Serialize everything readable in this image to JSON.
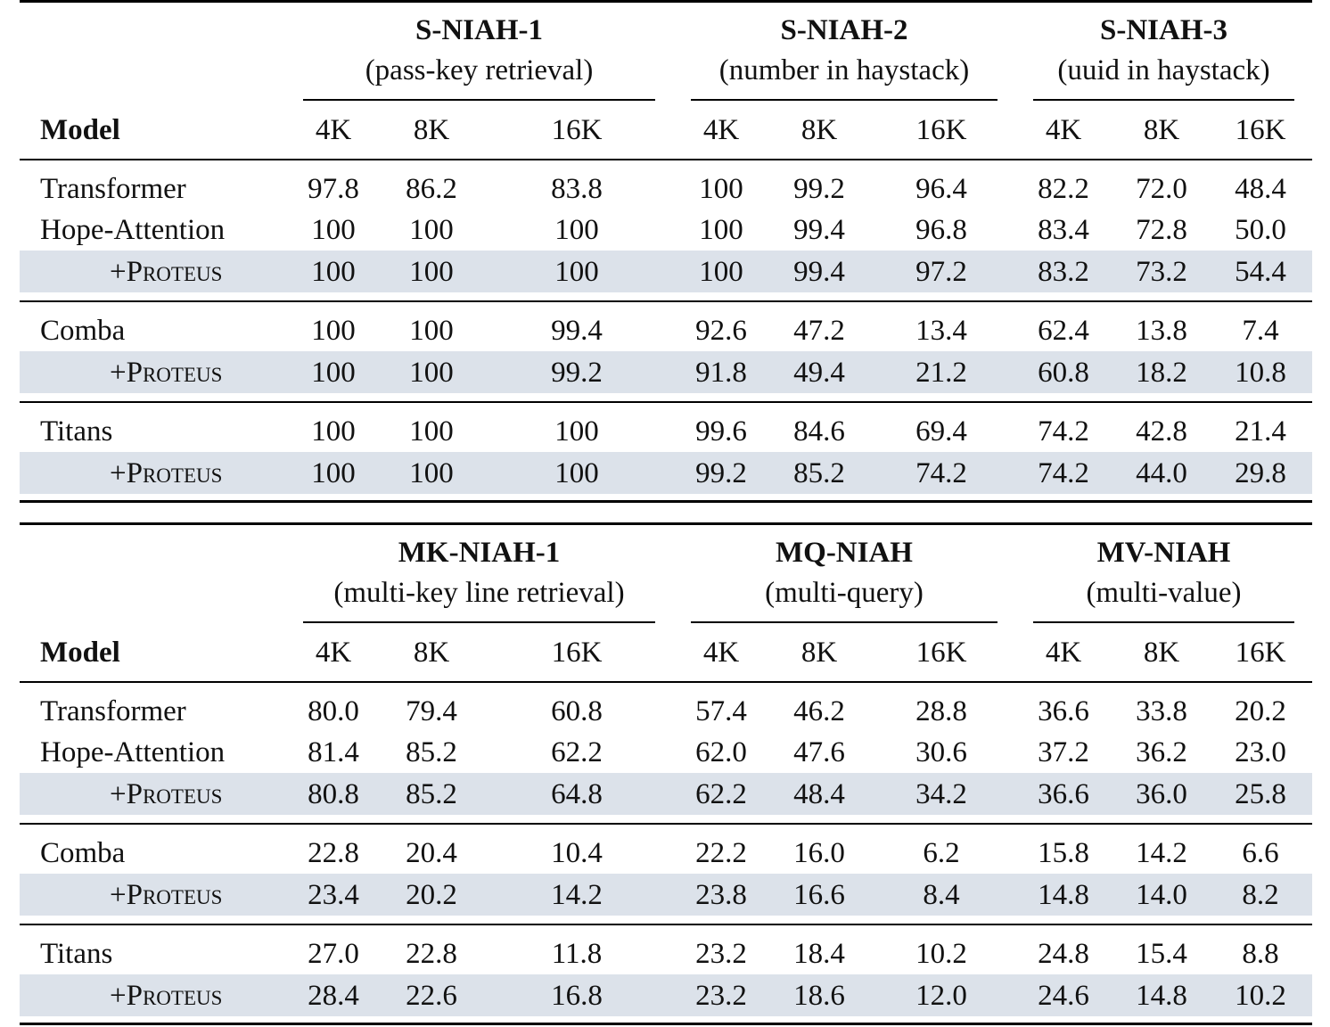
{
  "tables": [
    {
      "model_header": "Model",
      "groups": [
        {
          "title": "S-NIAH-1",
          "subtitle": "(pass-key retrieval)"
        },
        {
          "title": "S-NIAH-2",
          "subtitle": "(number in haystack)"
        },
        {
          "title": "S-NIAH-3",
          "subtitle": "(uuid in haystack)"
        }
      ],
      "context_lengths": [
        "4K",
        "8K",
        "16K",
        "4K",
        "8K",
        "16K",
        "4K",
        "8K",
        "16K"
      ],
      "rows": [
        {
          "model": "Transformer",
          "values": [
            "97.8",
            "86.2",
            "83.8",
            "100",
            "99.2",
            "96.4",
            "82.2",
            "72.0",
            "48.4"
          ]
        },
        {
          "model": "Hope-Attention",
          "values": [
            "100",
            "100",
            "100",
            "100",
            "99.4",
            "96.8",
            "83.4",
            "72.8",
            "50.0"
          ]
        },
        {
          "model": "+Proteus",
          "values": [
            "100",
            "100",
            "100",
            "100",
            "99.4",
            "97.2",
            "83.2",
            "73.2",
            "54.4"
          ]
        },
        {
          "model": "Comba",
          "values": [
            "100",
            "100",
            "99.4",
            "92.6",
            "47.2",
            "13.4",
            "62.4",
            "13.8",
            "7.4"
          ]
        },
        {
          "model": "+Proteus",
          "values": [
            "100",
            "100",
            "99.2",
            "91.8",
            "49.4",
            "21.2",
            "60.8",
            "18.2",
            "10.8"
          ]
        },
        {
          "model": "Titans",
          "values": [
            "100",
            "100",
            "100",
            "99.6",
            "84.6",
            "69.4",
            "74.2",
            "42.8",
            "21.4"
          ]
        },
        {
          "model": "+Proteus",
          "values": [
            "100",
            "100",
            "100",
            "99.2",
            "85.2",
            "74.2",
            "74.2",
            "44.0",
            "29.8"
          ]
        }
      ]
    },
    {
      "model_header": "Model",
      "groups": [
        {
          "title": "MK-NIAH-1",
          "subtitle": "(multi-key line retrieval)"
        },
        {
          "title": "MQ-NIAH",
          "subtitle": "(multi-query)"
        },
        {
          "title": "MV-NIAH",
          "subtitle": "(multi-value)"
        }
      ],
      "context_lengths": [
        "4K",
        "8K",
        "16K",
        "4K",
        "8K",
        "16K",
        "4K",
        "8K",
        "16K"
      ],
      "rows": [
        {
          "model": "Transformer",
          "values": [
            "80.0",
            "79.4",
            "60.8",
            "57.4",
            "46.2",
            "28.8",
            "36.6",
            "33.8",
            "20.2"
          ]
        },
        {
          "model": "Hope-Attention",
          "values": [
            "81.4",
            "85.2",
            "62.2",
            "62.0",
            "47.6",
            "30.6",
            "37.2",
            "36.2",
            "23.0"
          ]
        },
        {
          "model": "+Proteus",
          "values": [
            "80.8",
            "85.2",
            "64.8",
            "62.2",
            "48.4",
            "34.2",
            "36.6",
            "36.0",
            "25.8"
          ]
        },
        {
          "model": "Comba",
          "values": [
            "22.8",
            "20.4",
            "10.4",
            "22.2",
            "16.0",
            "6.2",
            "15.8",
            "14.2",
            "6.6"
          ]
        },
        {
          "model": "+Proteus",
          "values": [
            "23.4",
            "20.2",
            "14.2",
            "23.8",
            "16.6",
            "8.4",
            "14.8",
            "14.0",
            "8.2"
          ]
        },
        {
          "model": "Titans",
          "values": [
            "27.0",
            "22.8",
            "11.8",
            "23.2",
            "18.4",
            "10.2",
            "24.8",
            "15.4",
            "8.8"
          ]
        },
        {
          "model": "+Proteus",
          "values": [
            "28.4",
            "22.6",
            "16.8",
            "23.2",
            "18.6",
            "12.0",
            "24.6",
            "14.8",
            "10.2"
          ]
        }
      ]
    }
  ]
}
